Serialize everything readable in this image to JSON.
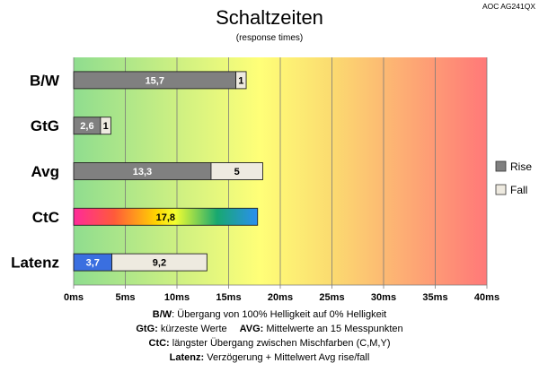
{
  "model_tag": "AOC AG241QX",
  "chart_data": {
    "type": "bar",
    "title": "Schaltzeiten",
    "subtitle": "(response times)",
    "categories": [
      "B/W",
      "GtG",
      "Avg",
      "CtC",
      "Latenz"
    ],
    "series": [
      {
        "name": "Rise",
        "values": [
          15.7,
          2.6,
          13.3,
          null,
          3.7
        ]
      },
      {
        "name": "Fall",
        "values": [
          1,
          1,
          5,
          null,
          9.2
        ]
      }
    ],
    "single_values": {
      "CtC": 17.8
    },
    "value_labels": {
      "rise": [
        "15,7",
        "2,6",
        "13,3",
        "",
        "3,7"
      ],
      "fall": [
        "1",
        "1",
        "5",
        "",
        "9,2"
      ],
      "ctc": "17,8"
    },
    "x_ticks": [
      0,
      5,
      10,
      15,
      20,
      25,
      30,
      35,
      40
    ],
    "x_tick_labels": [
      "0ms",
      "5ms",
      "10ms",
      "15ms",
      "20ms",
      "25ms",
      "30ms",
      "35ms",
      "40ms"
    ],
    "xlim": [
      0,
      40
    ],
    "orientation": "horizontal",
    "stacked": true,
    "grid": true,
    "legend_position": "right",
    "colors": {
      "rise": "#808080",
      "fall": "#eeeae0",
      "latenz_rise": "#3a6fe0",
      "background_gradient": [
        "#92e092",
        "#ffff7a",
        "#f8c070",
        "#ff7d7d"
      ],
      "ctc_gradient": [
        "#ff2a9a",
        "#ff5a3a",
        "#ffd400",
        "#f8ff30",
        "#18a870",
        "#2a8ff0"
      ]
    }
  },
  "footnotes": [
    {
      "key": "B/W",
      "text": ":  Übergang von 100% Helligkeit auf 0% Helligkeit"
    },
    {
      "key": "GtG:",
      "text": " kürzeste  Werte",
      "key2": "AVG:",
      "text2": " Mittelwerte  an 15 Messpunkten"
    },
    {
      "key": "CtC:",
      "text": " längster Übergang  zwischen Mischfarben  (C,M,Y)"
    },
    {
      "key": "Latenz:",
      "text": " Verzögerung  + Mittelwert Avg rise/fall"
    }
  ]
}
